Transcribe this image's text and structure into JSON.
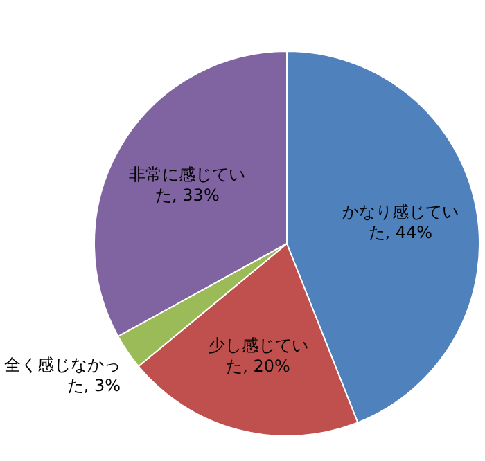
{
  "chart_data": {
    "type": "pie",
    "categories": [
      "かなり感じていた",
      "少し感じていた",
      "全く感じなかった",
      "非常に感じていた"
    ],
    "values": [
      44,
      20,
      3,
      33
    ],
    "value_labels": [
      "44%",
      "20%",
      "3%",
      "33%"
    ],
    "colors": [
      "#4f81bd",
      "#c0504d",
      "#9bbb59",
      "#8064a2"
    ]
  }
}
